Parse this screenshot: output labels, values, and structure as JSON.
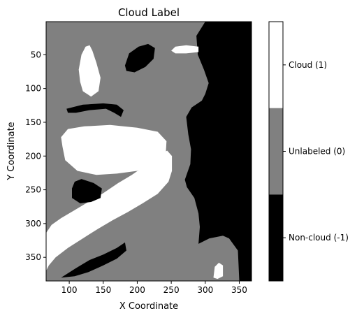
{
  "chart_data": {
    "type": "heatmap",
    "title": "Cloud Label",
    "xlabel": "X Coordinate",
    "ylabel": "Y Coordinate",
    "xlim": [
      66,
      368
    ],
    "ylim": [
      385,
      1
    ],
    "x_ticks": [
      100,
      150,
      200,
      250,
      300,
      350
    ],
    "y_ticks": [
      50,
      100,
      150,
      200,
      250,
      300,
      350
    ],
    "y_inverted": true,
    "grid": false,
    "colorbar": {
      "placement": "right",
      "classes": [
        {
          "value": 1,
          "label": "Cloud (1)",
          "color": "#ffffff"
        },
        {
          "value": 0,
          "label": "Unlabeled (0)",
          "color": "#808080"
        },
        {
          "value": -1,
          "label": "Non-cloud (-1)",
          "color": "#000000"
        }
      ]
    },
    "regions": [
      {
        "class": -1,
        "label": "non-cloud band along the right edge",
        "points": [
          [
            300,
            1
          ],
          [
            368,
            1
          ],
          [
            368,
            385
          ],
          [
            350,
            385
          ],
          [
            348,
            340
          ],
          [
            335,
            322
          ],
          [
            326,
            318
          ],
          [
            306,
            322
          ],
          [
            290,
            330
          ],
          [
            292,
            305
          ],
          [
            290,
            285
          ],
          [
            284,
            262
          ],
          [
            273,
            246
          ],
          [
            270,
            235
          ],
          [
            278,
            212
          ],
          [
            279,
            190
          ],
          [
            275,
            168
          ],
          [
            272,
            142
          ],
          [
            280,
            128
          ],
          [
            295,
            118
          ],
          [
            300,
            108
          ],
          [
            305,
            92
          ],
          [
            298,
            72
          ],
          [
            289,
            50
          ],
          [
            287,
            22
          ]
        ]
      },
      {
        "class": 1,
        "label": "large diagonal cloud mass",
        "points": [
          [
            66,
            314
          ],
          [
            74,
            302
          ],
          [
            88,
            292
          ],
          [
            108,
            280
          ],
          [
            128,
            268
          ],
          [
            150,
            255
          ],
          [
            172,
            240
          ],
          [
            192,
            228
          ],
          [
            212,
            214
          ],
          [
            230,
            200
          ],
          [
            244,
            192
          ],
          [
            251,
            200
          ],
          [
            251,
            222
          ],
          [
            246,
            238
          ],
          [
            230,
            256
          ],
          [
            208,
            270
          ],
          [
            186,
            283
          ],
          [
            164,
            295
          ],
          [
            142,
            308
          ],
          [
            120,
            322
          ],
          [
            98,
            336
          ],
          [
            80,
            350
          ],
          [
            70,
            362
          ],
          [
            66,
            370
          ]
        ]
      },
      {
        "class": 1,
        "label": "central oval cloud",
        "points": [
          [
            90,
            186
          ],
          [
            88,
            172
          ],
          [
            98,
            160
          ],
          [
            122,
            156
          ],
          [
            160,
            154
          ],
          [
            200,
            158
          ],
          [
            230,
            164
          ],
          [
            243,
            178
          ],
          [
            242,
            196
          ],
          [
            226,
            210
          ],
          [
            200,
            222
          ],
          [
            170,
            226
          ],
          [
            140,
            228
          ],
          [
            112,
            222
          ],
          [
            94,
            206
          ]
        ]
      },
      {
        "class": 1,
        "label": "upper left cloud",
        "points": [
          [
            114,
            72
          ],
          [
            118,
            50
          ],
          [
            124,
            38
          ],
          [
            130,
            36
          ],
          [
            134,
            44
          ],
          [
            140,
            62
          ],
          [
            146,
            84
          ],
          [
            143,
            104
          ],
          [
            132,
            112
          ],
          [
            120,
            104
          ],
          [
            116,
            90
          ]
        ]
      },
      {
        "class": -1,
        "label": "black curved streak",
        "points": [
          [
            96,
            130
          ],
          [
            120,
            124
          ],
          [
            150,
            122
          ],
          [
            170,
            124
          ],
          [
            180,
            132
          ],
          [
            176,
            142
          ],
          [
            166,
            136
          ],
          [
            154,
            130
          ],
          [
            130,
            132
          ],
          [
            110,
            136
          ],
          [
            98,
            136
          ]
        ]
      },
      {
        "class": -1,
        "label": "black patch below oval cloud",
        "points": [
          [
            104,
            248
          ],
          [
            108,
            238
          ],
          [
            118,
            234
          ],
          [
            136,
            240
          ],
          [
            148,
            248
          ],
          [
            146,
            262
          ],
          [
            132,
            268
          ],
          [
            116,
            270
          ],
          [
            104,
            262
          ]
        ]
      },
      {
        "class": -1,
        "label": "black patch top center",
        "points": [
          [
            182,
            66
          ],
          [
            188,
            48
          ],
          [
            202,
            38
          ],
          [
            216,
            34
          ],
          [
            226,
            40
          ],
          [
            224,
            56
          ],
          [
            212,
            68
          ],
          [
            196,
            76
          ],
          [
            184,
            74
          ]
        ]
      },
      {
        "class": 1,
        "label": "small cloud top right",
        "points": [
          [
            250,
            44
          ],
          [
            256,
            38
          ],
          [
            272,
            36
          ],
          [
            290,
            38
          ],
          [
            290,
            46
          ],
          [
            272,
            48
          ],
          [
            256,
            48
          ]
        ]
      },
      {
        "class": 1,
        "label": "small cloud lower right",
        "points": [
          [
            312,
            380
          ],
          [
            314,
            364
          ],
          [
            320,
            358
          ],
          [
            326,
            362
          ],
          [
            326,
            378
          ],
          [
            318,
            382
          ]
        ]
      },
      {
        "class": -1,
        "label": "black streak bottom",
        "points": [
          [
            88,
            380
          ],
          [
            110,
            366
          ],
          [
            130,
            354
          ],
          [
            150,
            346
          ],
          [
            170,
            336
          ],
          [
            182,
            328
          ],
          [
            184,
            340
          ],
          [
            170,
            352
          ],
          [
            150,
            362
          ],
          [
            128,
            372
          ],
          [
            108,
            378
          ]
        ]
      }
    ]
  }
}
